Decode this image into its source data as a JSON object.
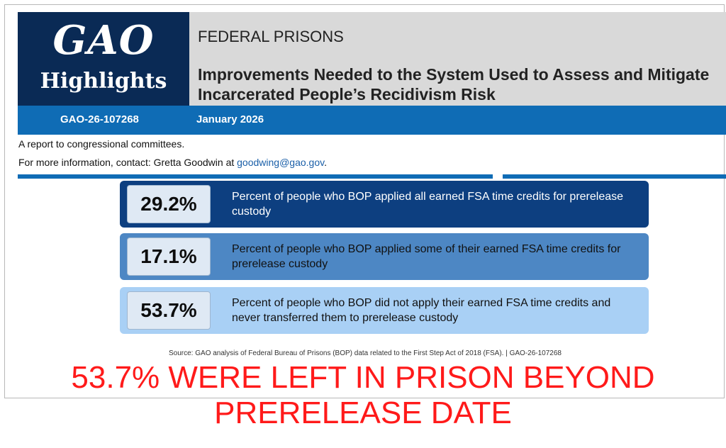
{
  "logo": {
    "line1": "GAO",
    "line2": "Highlights"
  },
  "header": {
    "subject": "FEDERAL PRISONS",
    "title": "Improvements Needed to the System Used to Assess and Mitigate Incarcerated People’s Recidivism Risk"
  },
  "info_bar": {
    "report_id": "GAO-26-107268",
    "date": "January 2026"
  },
  "meta": {
    "line1": "A report to congressional committees.",
    "contact_prefix": "For more information, contact: Gretta Goodwin at",
    "contact_email": "goodwing@gao.gov",
    "contact_suffix": "."
  },
  "stats": [
    {
      "value": "29.2%",
      "text": "Percent of people who BOP applied all earned FSA time credits for prerelease custody"
    },
    {
      "value": "17.1%",
      "text": "Percent of people who BOP applied some of their earned FSA time credits for prerelease custody"
    },
    {
      "value": "53.7%",
      "text": "Percent of people who BOP did not apply their earned FSA time credits and never transferred them to prerelease custody"
    }
  ],
  "source": "Source: GAO analysis of Federal Bureau of Prisons (BOP) data related to the First Step Act of 2018 (FSA).  |  GAO-26-107268",
  "caption": {
    "line1": "53.7% WERE LEFT IN PRISON BEYOND",
    "line2": "PRERELEASE DATE"
  },
  "colors": {
    "navy": "#0a2a55",
    "accent_blue": "#0f6cb5",
    "card_dark": "#0d3f80",
    "card_mid": "#4d87c4",
    "card_light": "#a9d0f5",
    "caption_red": "#ff1a1a"
  }
}
